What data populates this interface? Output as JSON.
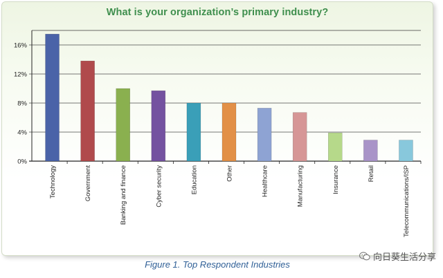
{
  "chart_data": {
    "type": "bar",
    "title": "What is your organization’s primary industry?",
    "caption": "Figure 1. Top Respondent Industries",
    "categories": [
      "Technology",
      "Government",
      "Banking and finance",
      "Cyber security",
      "Education",
      "Other",
      "Healthcare",
      "Manufacturing",
      "Insurance",
      "Retail",
      "Telecommunications/ISP"
    ],
    "values": [
      17.5,
      13.8,
      10.0,
      9.7,
      8.0,
      8.0,
      7.3,
      6.7,
      3.9,
      2.9,
      2.9
    ],
    "colors": [
      "#4a63a8",
      "#b04a4c",
      "#8ab04f",
      "#7452a0",
      "#3a9fb8",
      "#e29047",
      "#8ea3d3",
      "#d69696",
      "#b6d98a",
      "#a994c8",
      "#88c8dc"
    ],
    "y_ticks": [
      "0%",
      "4%",
      "8%",
      "12%",
      "16%"
    ],
    "ylim": [
      0,
      18
    ],
    "y_unit": "%",
    "grid": true,
    "xlabel": "",
    "ylabel": ""
  },
  "watermark": {
    "text": "向日葵生活分享",
    "icon": "wechat-icon"
  }
}
